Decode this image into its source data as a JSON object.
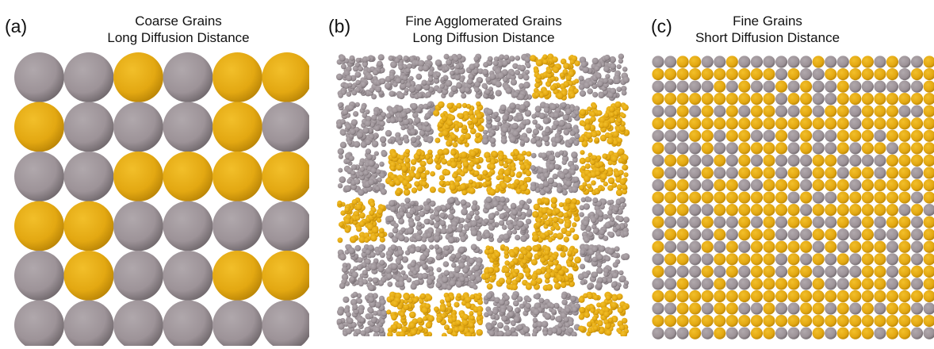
{
  "panels": [
    {
      "label": "(a)",
      "title_line1": "Coarse Grains",
      "title_line2": "Long Diffusion Distance",
      "grid": [
        "GGOGOO",
        "OGGGOG",
        "GGOOOO",
        "OOGGGG",
        "GOGGOO",
        "GGGGGG"
      ]
    },
    {
      "label": "(b)",
      "title_line1": "Fine Agglomerated Grains",
      "title_line2": "Long Diffusion Distance",
      "grid": [
        "GGGGOG",
        "GGOGGO",
        "GOOOGO",
        "OGGGOG",
        "GGGOOG",
        "GOOGGO"
      ]
    },
    {
      "label": "(c)",
      "title_line1": "Fine Grains",
      "title_line2": "Short Diffusion Distance",
      "grid": [
        "GGOOGGOGGGGGGOGGOOGOGGO",
        "OOOOOOOOOOGOGGOOOOOOGOO",
        "GGGGGOGOGGOGOGGOGGGGGGO",
        "OOOOOOOOOOGOOGGOOOOOOOO",
        "GGOGOGOGOOGGOGOOGOOOGGO",
        "OOOOOOOOOOOOOOOOGOOOOOO",
        "GGGOOGOOGGOGOGGOOOGOOOO",
        "OGGGOGGOOOOGOGGOGOOGOOO",
        "GOOGGOGOGOGGGOOGGGGOOOO",
        "OGGGOGGOOOGOGOOGOOGOOGO",
        "GOOGGOOGGOOOGOOOGOOOOOO",
        "OOOOOOOOOOOGOGGOOOOOOGO",
        "GOOGGOOOOOOOGOOOOOOOGOG",
        "OGGGOGGOGOGOOGGOGOGOOGO",
        "GOOGGOGOOOGGGOOGGOGGOGO",
        "OGGGOGOGOOOOOGOGOOOGOGO",
        "GOOGGOOOOOGOGOGOGOOGOGO",
        "OGGGOGOGOOGOOGGGGOOGOOO",
        "GGOGGOGGOOOOGOGGOOOGOGO",
        "OOOOOOOOOOOOOOOOOOOOOOO",
        "GGOOGOOGGOGGOOGOGOGOOGG",
        "OOOOOOOOOOOOOOOOOOOOOOO",
        "GGGOGOGGOOGGGOGOOOGOOGG"
      ]
    }
  ],
  "colors": {
    "gold": "#e3a812",
    "gray": "#9d9398",
    "background": "#ffffff"
  }
}
